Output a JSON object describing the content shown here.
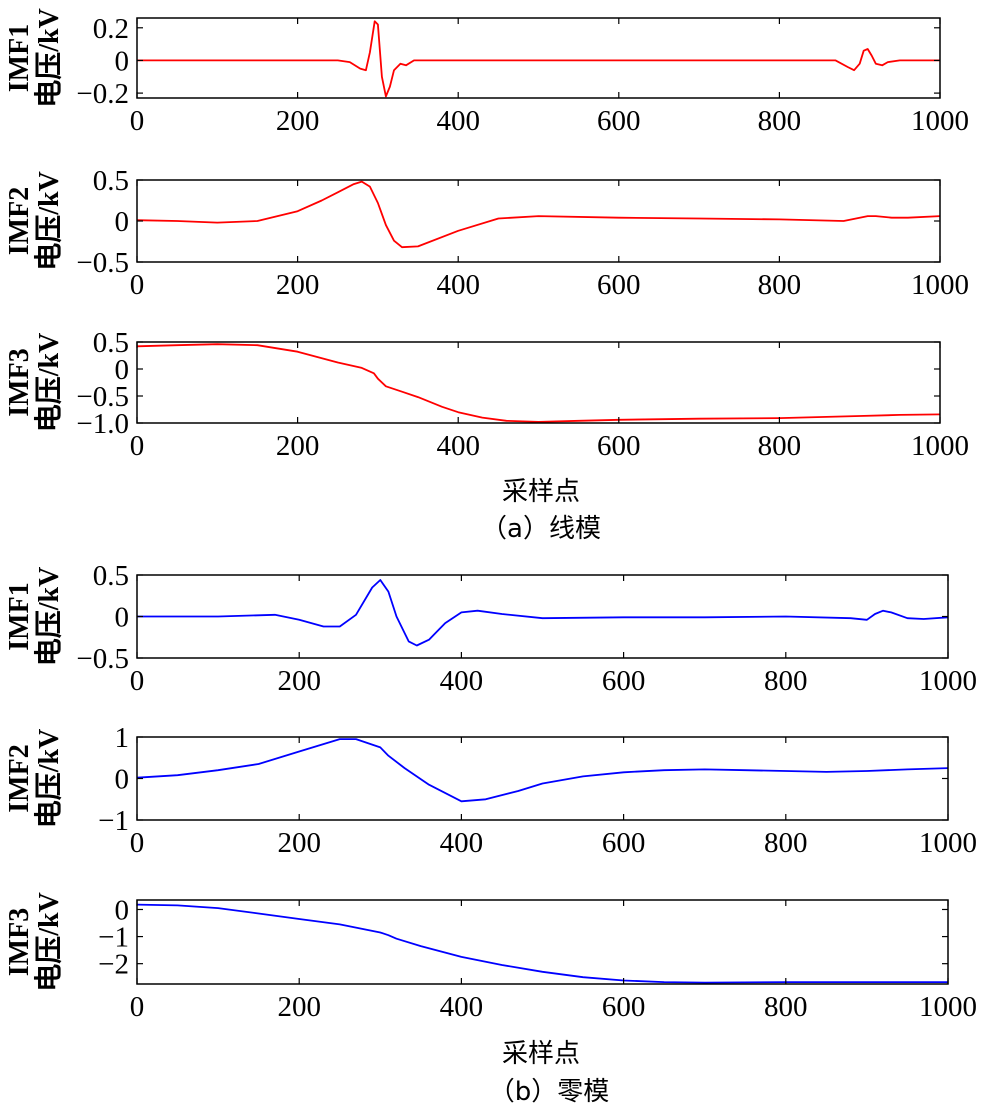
{
  "figure": {
    "captions": {
      "a": "（a）线模",
      "b": "（b）零模"
    },
    "xlabel": "采样点"
  },
  "chart_data": [
    {
      "type": "line",
      "group": "a",
      "color": "#ff0000",
      "ylabel": [
        "IMF1",
        "电压/kV"
      ],
      "xlim": [
        0,
        1000
      ],
      "ylim": [
        -0.23,
        0.26
      ],
      "xticks": [
        0,
        200,
        400,
        600,
        800,
        1000
      ],
      "yticks": [
        -0.2,
        0,
        0.2
      ],
      "ytick_labels": [
        "−0.2",
        "0",
        "0.2"
      ],
      "x": [
        0,
        250,
        265,
        278,
        285,
        290,
        296,
        300,
        305,
        310,
        315,
        320,
        328,
        335,
        345,
        360,
        400,
        850,
        870,
        885,
        893,
        900,
        905,
        910,
        915,
        920,
        928,
        935,
        950,
        1000
      ],
      "y": [
        0,
        0,
        -0.01,
        -0.05,
        -0.06,
        0.05,
        0.24,
        0.22,
        -0.1,
        -0.22,
        -0.16,
        -0.06,
        -0.02,
        -0.03,
        0,
        0,
        0,
        0,
        0,
        -0.04,
        -0.06,
        -0.02,
        0.06,
        0.07,
        0.03,
        -0.02,
        -0.03,
        -0.01,
        0,
        0
      ]
    },
    {
      "type": "line",
      "group": "a",
      "color": "#ff0000",
      "ylabel": [
        "IMF2",
        "电压/kV"
      ],
      "xlim": [
        0,
        1000
      ],
      "ylim": [
        -0.5,
        0.5
      ],
      "xticks": [
        0,
        200,
        400,
        600,
        800,
        1000
      ],
      "yticks": [
        -0.5,
        0,
        0.5
      ],
      "ytick_labels": [
        "−0.5",
        "0",
        "0.5"
      ],
      "x": [
        0,
        50,
        100,
        150,
        200,
        230,
        250,
        270,
        280,
        290,
        300,
        310,
        320,
        330,
        350,
        400,
        450,
        500,
        600,
        700,
        800,
        880,
        890,
        900,
        910,
        920,
        940,
        960,
        1000
      ],
      "y": [
        0.01,
        0.0,
        -0.02,
        0.0,
        0.12,
        0.25,
        0.35,
        0.45,
        0.48,
        0.42,
        0.22,
        -0.05,
        -0.24,
        -0.32,
        -0.31,
        -0.12,
        0.03,
        0.06,
        0.04,
        0.03,
        0.02,
        0.0,
        0.02,
        0.04,
        0.06,
        0.06,
        0.04,
        0.04,
        0.06
      ]
    },
    {
      "type": "line",
      "group": "a",
      "color": "#ff0000",
      "ylabel": [
        "IMF3",
        "电压/kV"
      ],
      "xlim": [
        0,
        1000
      ],
      "ylim": [
        -1.0,
        0.5
      ],
      "xticks": [
        0,
        200,
        400,
        600,
        800,
        1000
      ],
      "yticks": [
        -1.0,
        -0.5,
        0,
        0.5
      ],
      "ytick_labels": [
        "−1.0",
        "−0.5",
        "0",
        "0.5"
      ],
      "x": [
        0,
        50,
        100,
        150,
        200,
        250,
        280,
        295,
        300,
        310,
        330,
        350,
        380,
        400,
        430,
        460,
        500,
        550,
        600,
        700,
        800,
        900,
        950,
        1000
      ],
      "y": [
        0.42,
        0.44,
        0.46,
        0.44,
        0.32,
        0.12,
        0.02,
        -0.08,
        -0.18,
        -0.32,
        -0.42,
        -0.52,
        -0.7,
        -0.8,
        -0.9,
        -0.96,
        -0.98,
        -0.96,
        -0.94,
        -0.92,
        -0.91,
        -0.87,
        -0.85,
        -0.84
      ]
    },
    {
      "type": "line",
      "group": "b",
      "color": "#0000ff",
      "ylabel": [
        "IMF1",
        "电压/kV"
      ],
      "xlim": [
        0,
        1000
      ],
      "ylim": [
        -0.5,
        0.5
      ],
      "xticks": [
        0,
        200,
        400,
        600,
        800,
        1000
      ],
      "yticks": [
        -0.5,
        0,
        0.5
      ],
      "ytick_labels": [
        "−0.5",
        "0",
        "0.5"
      ],
      "x": [
        0,
        100,
        170,
        200,
        230,
        250,
        270,
        290,
        300,
        310,
        320,
        335,
        345,
        360,
        380,
        400,
        420,
        450,
        500,
        600,
        700,
        800,
        880,
        900,
        910,
        920,
        930,
        950,
        970,
        1000
      ],
      "y": [
        0,
        0,
        0.02,
        -0.04,
        -0.12,
        -0.12,
        0.02,
        0.35,
        0.44,
        0.3,
        0.0,
        -0.3,
        -0.35,
        -0.28,
        -0.08,
        0.05,
        0.07,
        0.03,
        -0.02,
        -0.01,
        -0.01,
        0.0,
        -0.02,
        -0.04,
        0.03,
        0.07,
        0.05,
        -0.02,
        -0.03,
        -0.01
      ]
    },
    {
      "type": "line",
      "group": "b",
      "color": "#0000ff",
      "ylabel": [
        "IMF2",
        "电压/kV"
      ],
      "xlim": [
        0,
        1000
      ],
      "ylim": [
        -1,
        1
      ],
      "xticks": [
        0,
        200,
        400,
        600,
        800,
        1000
      ],
      "yticks": [
        -1,
        0,
        1
      ],
      "ytick_labels": [
        "−1",
        "0",
        "1"
      ],
      "x": [
        0,
        50,
        100,
        150,
        200,
        250,
        270,
        300,
        310,
        330,
        360,
        400,
        430,
        470,
        500,
        550,
        600,
        650,
        700,
        750,
        800,
        850,
        900,
        950,
        1000
      ],
      "y": [
        0.02,
        0.08,
        0.2,
        0.35,
        0.65,
        0.95,
        0.95,
        0.75,
        0.55,
        0.25,
        -0.15,
        -0.55,
        -0.5,
        -0.3,
        -0.12,
        0.05,
        0.15,
        0.2,
        0.22,
        0.2,
        0.18,
        0.16,
        0.18,
        0.22,
        0.25
      ]
    },
    {
      "type": "line",
      "group": "b",
      "color": "#0000ff",
      "ylabel": [
        "IMF3",
        "电压/kV"
      ],
      "xlim": [
        0,
        1000
      ],
      "ylim": [
        -2.75,
        0.35
      ],
      "xticks": [
        0,
        200,
        400,
        600,
        800,
        1000
      ],
      "yticks": [
        -2,
        -1,
        0
      ],
      "ytick_labels": [
        "−2",
        "−1",
        "0"
      ],
      "x": [
        0,
        50,
        100,
        150,
        200,
        250,
        300,
        310,
        320,
        350,
        400,
        450,
        500,
        550,
        600,
        650,
        700,
        800,
        900,
        1000
      ],
      "y": [
        0.18,
        0.15,
        0.05,
        -0.15,
        -0.35,
        -0.55,
        -0.85,
        -0.95,
        -1.08,
        -1.35,
        -1.75,
        -2.05,
        -2.3,
        -2.5,
        -2.62,
        -2.68,
        -2.7,
        -2.68,
        -2.68,
        -2.68
      ]
    }
  ]
}
